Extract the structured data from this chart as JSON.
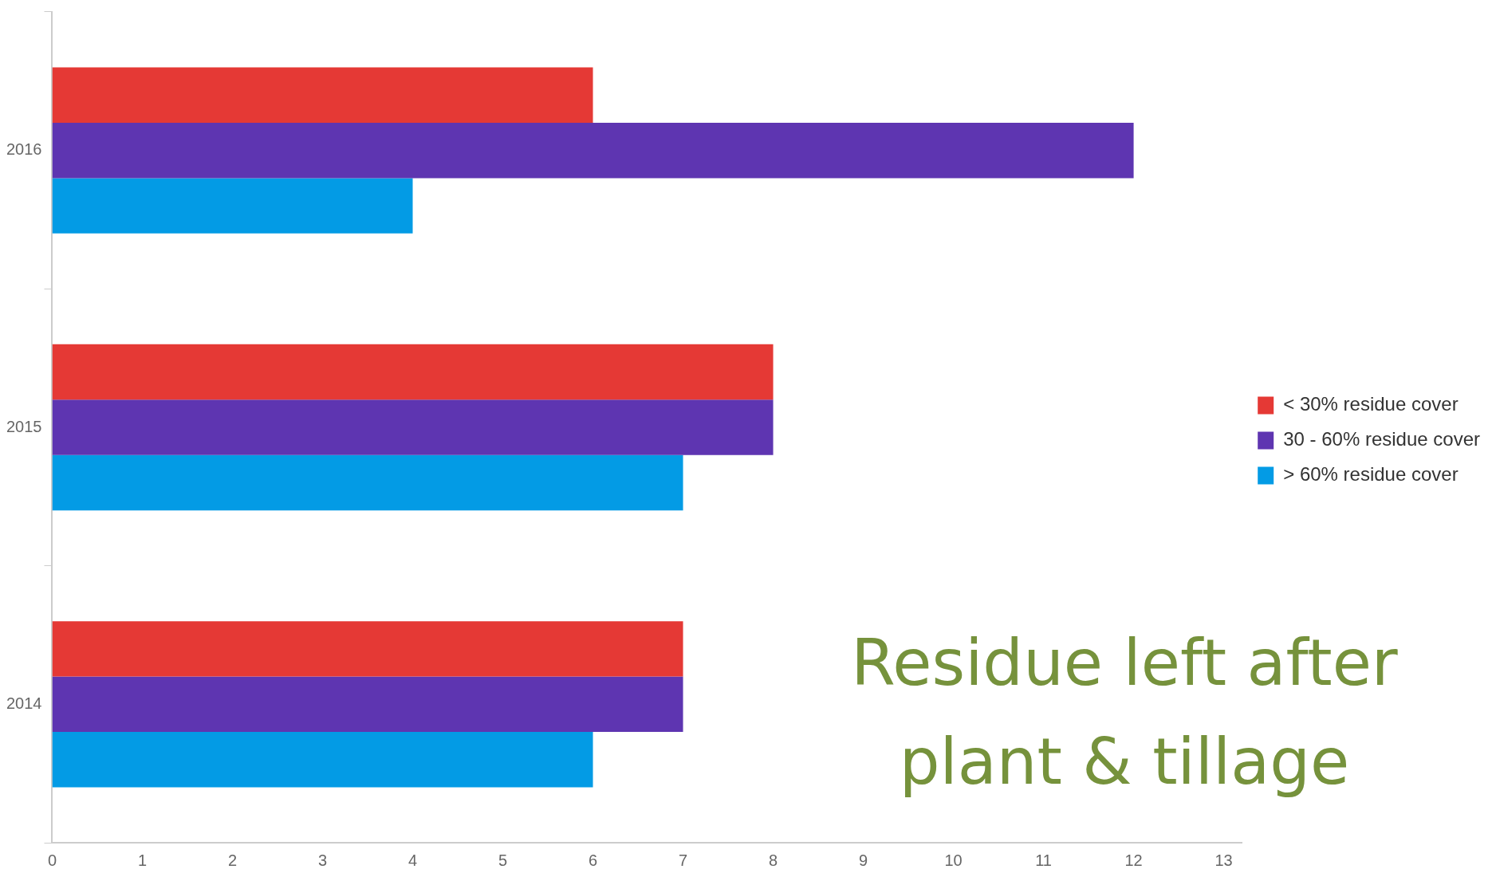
{
  "chart_data": {
    "type": "bar",
    "orientation": "horizontal",
    "title": "Residue left after plant & tillage",
    "categories": [
      "2016",
      "2015",
      "2014"
    ],
    "series": [
      {
        "name": "< 30% residue cover",
        "color": "#e53935",
        "values": [
          6,
          8,
          7
        ]
      },
      {
        "name": "30 - 60% residue cover",
        "color": "#5e35b1",
        "values": [
          12,
          8,
          7
        ]
      },
      {
        "name": "> 60% residue cover",
        "color": "#039be5",
        "values": [
          4,
          7,
          6
        ]
      }
    ],
    "xlim": [
      0,
      13.2
    ],
    "xticks": [
      0,
      1,
      2,
      3,
      4,
      5,
      6,
      7,
      8,
      9,
      10,
      11,
      12,
      13
    ],
    "grid": false,
    "legend": "right"
  }
}
